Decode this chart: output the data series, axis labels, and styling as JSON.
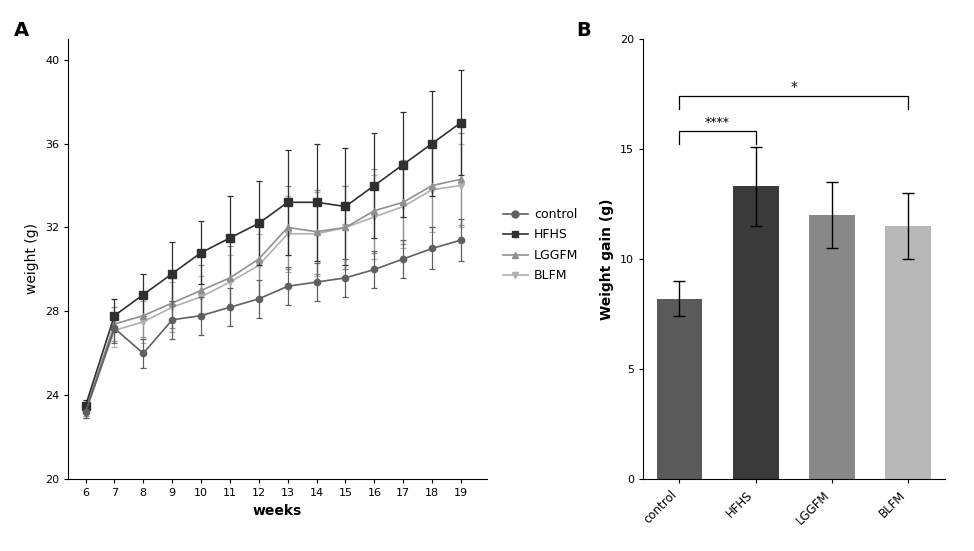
{
  "weeks": [
    6,
    7,
    8,
    9,
    10,
    11,
    12,
    13,
    14,
    15,
    16,
    17,
    18,
    19
  ],
  "control_mean": [
    23.2,
    27.2,
    26.0,
    27.6,
    27.8,
    28.2,
    28.6,
    29.2,
    29.4,
    29.6,
    30.0,
    30.5,
    31.0,
    31.4
  ],
  "control_sem": [
    0.3,
    0.7,
    0.7,
    0.9,
    0.9,
    0.9,
    0.9,
    0.9,
    0.9,
    0.9,
    0.9,
    0.9,
    1.0,
    1.0
  ],
  "hfhs_mean": [
    23.5,
    27.8,
    28.8,
    29.8,
    30.8,
    31.5,
    32.2,
    33.2,
    33.2,
    33.0,
    34.0,
    35.0,
    36.0,
    37.0
  ],
  "hfhs_sem": [
    0.3,
    0.8,
    1.0,
    1.5,
    1.5,
    2.0,
    2.0,
    2.5,
    2.8,
    2.8,
    2.5,
    2.5,
    2.5,
    2.5
  ],
  "lggfm_mean": [
    23.3,
    27.4,
    27.8,
    28.4,
    29.0,
    29.6,
    30.5,
    32.0,
    31.8,
    32.0,
    32.8,
    33.2,
    34.0,
    34.3
  ],
  "lggfm_sem": [
    0.3,
    0.8,
    1.0,
    1.2,
    1.2,
    1.5,
    1.8,
    2.0,
    2.0,
    2.0,
    2.0,
    2.0,
    2.0,
    2.2
  ],
  "blfm_mean": [
    23.2,
    27.1,
    27.5,
    28.2,
    28.7,
    29.4,
    30.2,
    31.7,
    31.7,
    32.0,
    32.5,
    33.0,
    33.8,
    34.0
  ],
  "blfm_sem": [
    0.3,
    0.8,
    1.0,
    1.2,
    1.0,
    1.3,
    1.5,
    1.8,
    2.0,
    2.0,
    2.0,
    2.0,
    2.0,
    2.0
  ],
  "bar_categories": [
    "control",
    "HFHS",
    "LGGFM",
    "BLFM"
  ],
  "bar_means": [
    8.2,
    13.3,
    12.0,
    11.5
  ],
  "bar_sems": [
    0.8,
    1.8,
    1.5,
    1.5
  ],
  "bar_colors": [
    "#5a5a5a",
    "#3a3a3a",
    "#888888",
    "#b8b8b8"
  ],
  "line_colors": [
    "#606060",
    "#303030",
    "#909090",
    "#b0b0b0"
  ],
  "legend_labels": [
    "control",
    "HFHS",
    "LGGFM",
    "BLFM"
  ],
  "panel_a_ylabel": "weight (g)",
  "panel_a_xlabel": "weeks",
  "panel_a_ylim": [
    20,
    41
  ],
  "panel_a_yticks": [
    20,
    24,
    28,
    32,
    36,
    40
  ],
  "panel_b_ylabel": "Weight gain (g)",
  "panel_b_ylim": [
    0,
    20
  ],
  "panel_b_yticks": [
    0,
    5,
    10,
    15,
    20
  ]
}
